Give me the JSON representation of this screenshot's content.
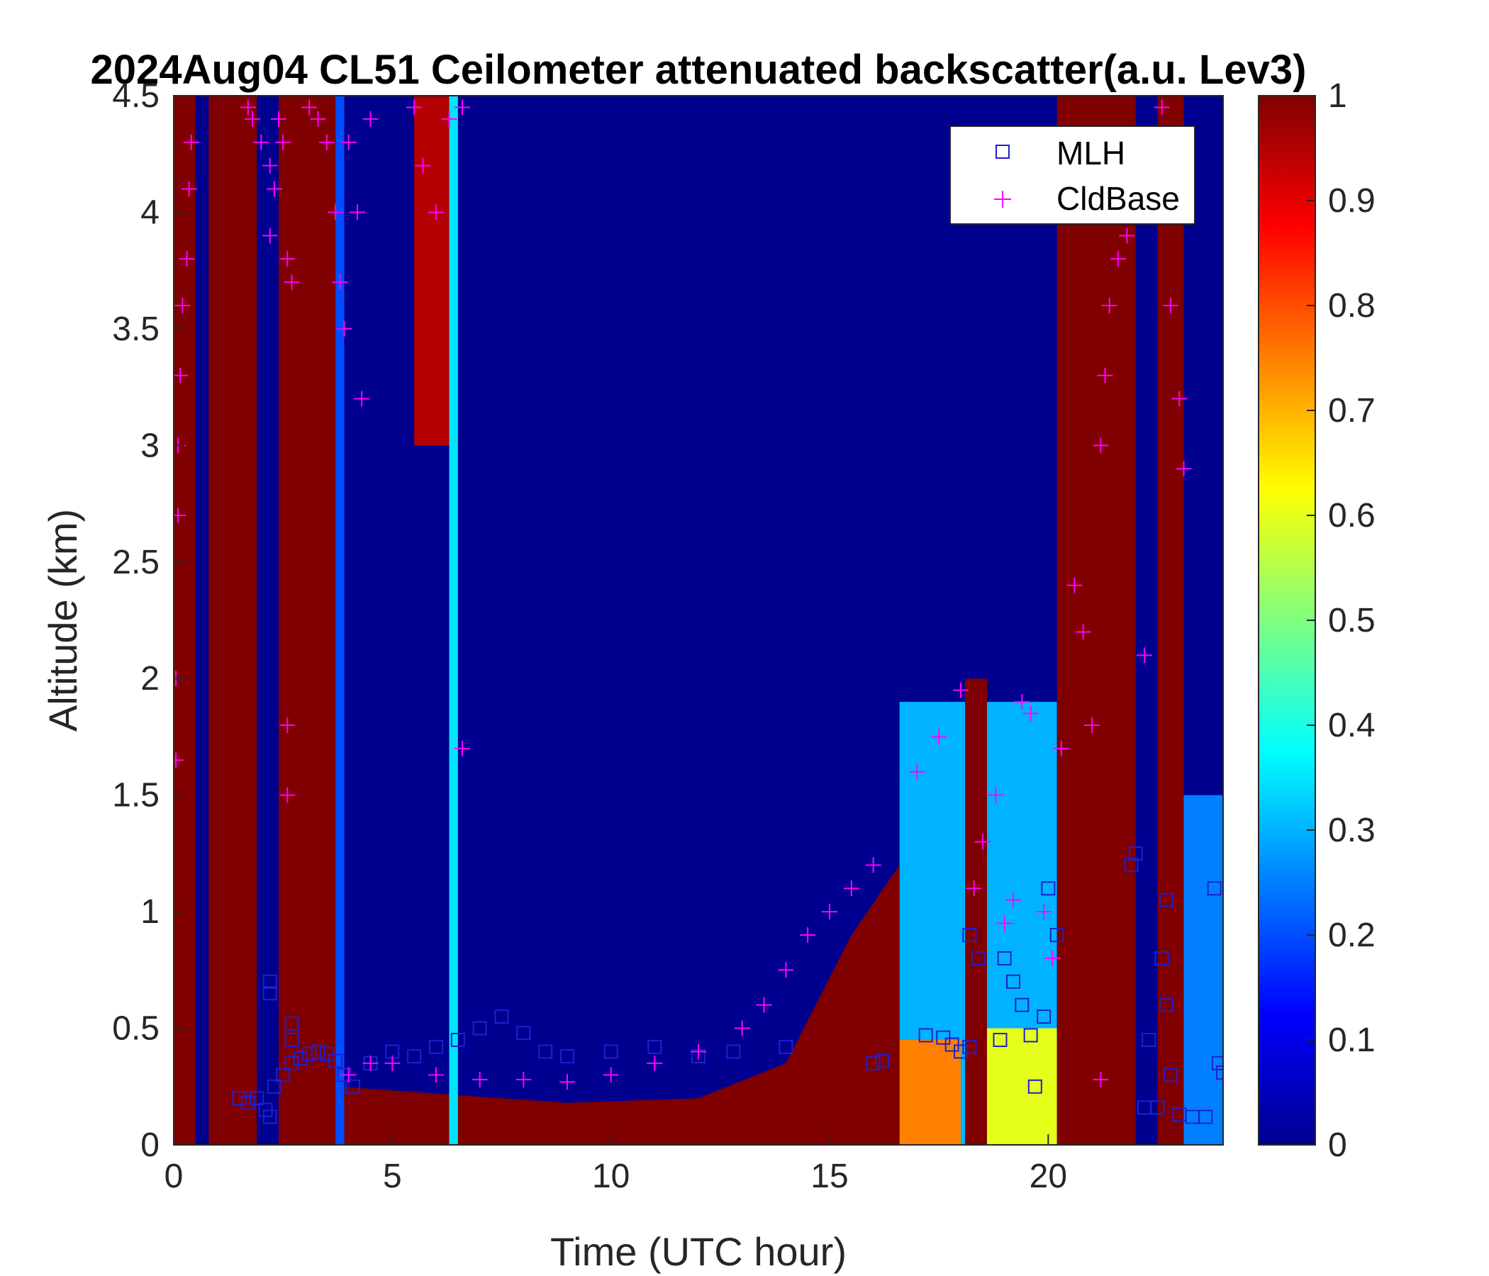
{
  "chart_data": {
    "type": "heatmap",
    "title": "2024Aug04 CL51 Ceilometer attenuated backscatter(a.u. Lev3)",
    "xlabel": "Time (UTC hour)",
    "ylabel": "Altitude (km)",
    "xlim": [
      0,
      24
    ],
    "ylim": [
      0,
      4.5
    ],
    "xticks": [
      0,
      5,
      10,
      15,
      20
    ],
    "xtick_labels": [
      "0",
      "5",
      "10",
      "15",
      "20"
    ],
    "yticks": [
      0,
      0.5,
      1,
      1.5,
      2,
      2.5,
      3,
      3.5,
      4,
      4.5
    ],
    "ytick_labels": [
      "0",
      "0.5",
      "1",
      "1.5",
      "2",
      "2.5",
      "3",
      "3.5",
      "4",
      "4.5"
    ],
    "colorbar": {
      "colormap": "jet",
      "range": [
        0,
        1
      ],
      "ticks": [
        0,
        0.1,
        0.2,
        0.3,
        0.4,
        0.5,
        0.6,
        0.7,
        0.8,
        0.9,
        1
      ],
      "tick_labels": [
        "0",
        "0.1",
        "0.2",
        "0.3",
        "0.4",
        "0.5",
        "0.6",
        "0.7",
        "0.8",
        "0.9",
        "1"
      ]
    },
    "heatmap_features": {
      "background_value": 0.0,
      "columns": [
        {
          "x0": 0.0,
          "x1": 0.5,
          "y0": 0,
          "y1": 4.5,
          "value": 1.0
        },
        {
          "x0": 0.8,
          "x1": 1.9,
          "y0": 0,
          "y1": 4.5,
          "value": 1.0
        },
        {
          "x0": 2.4,
          "x1": 3.7,
          "y0": 0,
          "y1": 4.5,
          "value": 1.0
        },
        {
          "x0": 3.7,
          "x1": 3.9,
          "y0": 0,
          "y1": 4.5,
          "value": 0.2
        },
        {
          "x0": 5.5,
          "x1": 6.3,
          "y0": 3.0,
          "y1": 4.5,
          "value": 0.95
        },
        {
          "x0": 6.3,
          "x1": 6.5,
          "y0": 0,
          "y1": 4.5,
          "value": 0.35
        },
        {
          "x0": 18.1,
          "x1": 18.6,
          "y0": 0,
          "y1": 2.0,
          "value": 1.0
        },
        {
          "x0": 20.2,
          "x1": 22.0,
          "y0": 0,
          "y1": 4.5,
          "value": 1.0
        },
        {
          "x0": 22.5,
          "x1": 23.1,
          "y0": 0,
          "y1": 4.5,
          "value": 1.0
        },
        {
          "x0": 23.1,
          "x1": 24.0,
          "y0": 0,
          "y1": 1.5,
          "value": 0.25
        }
      ],
      "boundary_layer": [
        {
          "x": 3.8,
          "top": 0.25,
          "value": 1.0
        },
        {
          "x": 6.0,
          "top": 0.22,
          "value": 1.0
        },
        {
          "x": 9.0,
          "top": 0.18,
          "value": 1.0
        },
        {
          "x": 12.0,
          "top": 0.2,
          "value": 1.0
        },
        {
          "x": 14.0,
          "top": 0.35,
          "value": 1.0
        },
        {
          "x": 15.5,
          "top": 0.9,
          "value": 1.0
        },
        {
          "x": 16.6,
          "top": 1.2,
          "value": 1.0
        }
      ],
      "aerosol_layer": [
        {
          "x": 16.6,
          "x1": 20.2,
          "top": 1.9,
          "value": 0.3
        },
        {
          "x": 16.6,
          "x1": 18.0,
          "top": 0.45,
          "value": 0.75
        },
        {
          "x": 18.6,
          "x1": 20.2,
          "top": 0.5,
          "value": 0.6
        }
      ]
    },
    "series": [
      {
        "name": "MLH",
        "marker": "square",
        "color": "#1f1fd0",
        "points": [
          [
            1.5,
            0.2
          ],
          [
            1.7,
            0.18
          ],
          [
            1.9,
            0.2
          ],
          [
            2.1,
            0.15
          ],
          [
            2.2,
            0.12
          ],
          [
            2.2,
            0.65
          ],
          [
            2.2,
            0.7
          ],
          [
            2.3,
            0.25
          ],
          [
            2.5,
            0.3
          ],
          [
            2.7,
            0.35
          ],
          [
            2.7,
            0.45
          ],
          [
            2.7,
            0.52
          ],
          [
            2.9,
            0.37
          ],
          [
            3.1,
            0.39
          ],
          [
            3.3,
            0.4
          ],
          [
            3.5,
            0.39
          ],
          [
            3.7,
            0.36
          ],
          [
            3.9,
            0.3
          ],
          [
            4.1,
            0.25
          ],
          [
            4.5,
            0.35
          ],
          [
            5.0,
            0.4
          ],
          [
            5.5,
            0.38
          ],
          [
            6.0,
            0.42
          ],
          [
            6.5,
            0.45
          ],
          [
            7.0,
            0.5
          ],
          [
            7.5,
            0.55
          ],
          [
            8.0,
            0.48
          ],
          [
            8.5,
            0.4
          ],
          [
            9.0,
            0.38
          ],
          [
            10.0,
            0.4
          ],
          [
            11.0,
            0.42
          ],
          [
            12.0,
            0.38
          ],
          [
            12.8,
            0.4
          ],
          [
            14.0,
            0.42
          ],
          [
            16.0,
            0.35
          ],
          [
            16.2,
            0.36
          ],
          [
            17.2,
            0.47
          ],
          [
            17.6,
            0.46
          ],
          [
            17.8,
            0.43
          ],
          [
            18.0,
            0.4
          ],
          [
            18.2,
            0.42
          ],
          [
            18.2,
            0.9
          ],
          [
            18.4,
            0.8
          ],
          [
            18.9,
            0.45
          ],
          [
            19.0,
            0.8
          ],
          [
            19.2,
            0.7
          ],
          [
            19.4,
            0.6
          ],
          [
            19.6,
            0.47
          ],
          [
            19.7,
            0.25
          ],
          [
            19.9,
            0.55
          ],
          [
            20.0,
            1.1
          ],
          [
            20.2,
            0.9
          ],
          [
            21.9,
            1.2
          ],
          [
            22.0,
            1.25
          ],
          [
            22.2,
            0.16
          ],
          [
            22.3,
            0.45
          ],
          [
            22.5,
            0.16
          ],
          [
            22.6,
            0.8
          ],
          [
            22.7,
            1.05
          ],
          [
            22.7,
            0.6
          ],
          [
            22.8,
            0.3
          ],
          [
            23.0,
            0.13
          ],
          [
            23.3,
            0.12
          ],
          [
            23.6,
            0.12
          ],
          [
            23.8,
            1.1
          ],
          [
            23.9,
            0.35
          ],
          [
            24.0,
            0.31
          ]
        ]
      },
      {
        "name": "CldBase",
        "marker": "plus",
        "color": "#ff00ff",
        "points": [
          [
            0.05,
            1.65
          ],
          [
            0.05,
            2.0
          ],
          [
            0.1,
            2.7
          ],
          [
            0.1,
            3.0
          ],
          [
            0.15,
            3.3
          ],
          [
            0.2,
            3.6
          ],
          [
            0.3,
            3.8
          ],
          [
            0.35,
            4.1
          ],
          [
            0.4,
            4.3
          ],
          [
            1.7,
            4.45
          ],
          [
            1.8,
            4.4
          ],
          [
            2.0,
            4.3
          ],
          [
            2.2,
            4.2
          ],
          [
            2.2,
            3.9
          ],
          [
            2.3,
            4.1
          ],
          [
            2.4,
            4.4
          ],
          [
            2.5,
            4.3
          ],
          [
            2.6,
            3.8
          ],
          [
            2.6,
            1.8
          ],
          [
            2.6,
            1.5
          ],
          [
            2.7,
            3.7
          ],
          [
            3.1,
            4.45
          ],
          [
            3.3,
            4.4
          ],
          [
            3.5,
            4.3
          ],
          [
            3.7,
            4.0
          ],
          [
            3.8,
            3.7
          ],
          [
            3.9,
            3.5
          ],
          [
            4.0,
            4.3
          ],
          [
            4.2,
            4.0
          ],
          [
            4.3,
            3.2
          ],
          [
            4.5,
            4.4
          ],
          [
            4.5,
            0.35
          ],
          [
            5.5,
            4.45
          ],
          [
            5.7,
            4.2
          ],
          [
            6.0,
            4.0
          ],
          [
            6.3,
            4.4
          ],
          [
            6.6,
            4.45
          ],
          [
            6.6,
            1.7
          ],
          [
            4.0,
            0.3
          ],
          [
            5.0,
            0.35
          ],
          [
            6.0,
            0.3
          ],
          [
            7.0,
            0.28
          ],
          [
            8.0,
            0.28
          ],
          [
            9.0,
            0.27
          ],
          [
            10.0,
            0.3
          ],
          [
            11.0,
            0.35
          ],
          [
            12.0,
            0.4
          ],
          [
            13.0,
            0.5
          ],
          [
            13.5,
            0.6
          ],
          [
            14.0,
            0.75
          ],
          [
            14.5,
            0.9
          ],
          [
            15.0,
            1.0
          ],
          [
            15.5,
            1.1
          ],
          [
            16.0,
            1.2
          ],
          [
            17.0,
            1.6
          ],
          [
            17.5,
            1.75
          ],
          [
            18.0,
            1.95
          ],
          [
            18.3,
            1.1
          ],
          [
            18.5,
            1.3
          ],
          [
            18.8,
            1.5
          ],
          [
            19.0,
            0.95
          ],
          [
            19.2,
            1.05
          ],
          [
            19.4,
            1.9
          ],
          [
            19.6,
            1.85
          ],
          [
            19.9,
            1.0
          ],
          [
            20.1,
            0.8
          ],
          [
            20.3,
            1.7
          ],
          [
            20.6,
            2.4
          ],
          [
            20.8,
            2.2
          ],
          [
            21.0,
            1.8
          ],
          [
            21.2,
            3.0
          ],
          [
            21.3,
            3.3
          ],
          [
            21.4,
            3.6
          ],
          [
            21.6,
            3.8
          ],
          [
            21.8,
            3.9
          ],
          [
            21.2,
            0.28
          ],
          [
            22.2,
            2.1
          ],
          [
            22.6,
            4.45
          ],
          [
            22.8,
            3.6
          ],
          [
            23.0,
            3.2
          ],
          [
            23.1,
            2.9
          ]
        ]
      }
    ],
    "legend": {
      "placement": "top-right",
      "entries": [
        {
          "label": "MLH",
          "marker": "square",
          "color": "#1f1fd0"
        },
        {
          "label": "CldBase",
          "marker": "plus",
          "color": "#ff00ff"
        }
      ]
    },
    "grid": false
  }
}
